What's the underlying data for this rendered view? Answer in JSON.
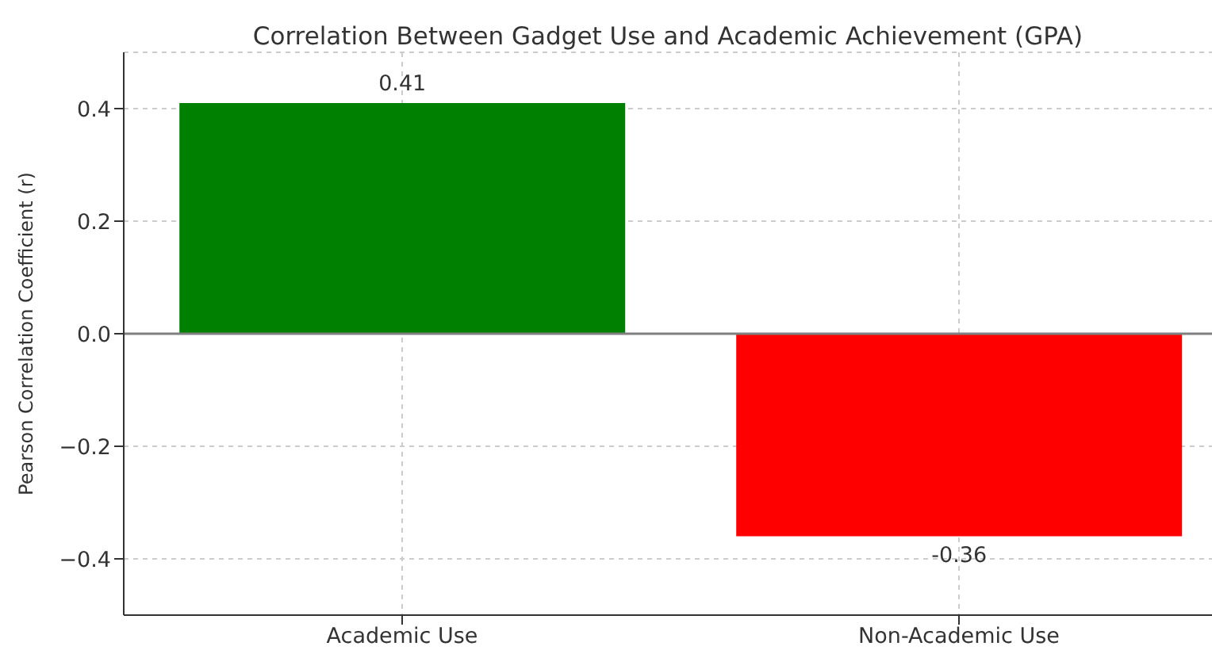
{
  "chart_data": {
    "type": "bar",
    "title": "Correlation Between Gadget Use and Academic Achievement (GPA)",
    "ylabel": "Pearson Correlation Coefficient (r)",
    "categories": [
      "Academic Use",
      "Non-Academic Use"
    ],
    "values": [
      0.41,
      -0.36
    ],
    "colors": [
      "#008000",
      "#ff0000"
    ],
    "ylim": [
      -0.5,
      0.5
    ],
    "yticks": [
      {
        "value": -0.4,
        "label": "−0.4"
      },
      {
        "value": -0.2,
        "label": "−0.2"
      },
      {
        "value": 0,
        "label": "0.0"
      },
      {
        "value": 0.2,
        "label": "0.2"
      },
      {
        "value": 0.4,
        "label": "0.4"
      }
    ],
    "grid": true,
    "data_labels": true,
    "ref_lines": [
      {
        "axis": "y",
        "value": 0,
        "color": "#808080"
      }
    ]
  }
}
